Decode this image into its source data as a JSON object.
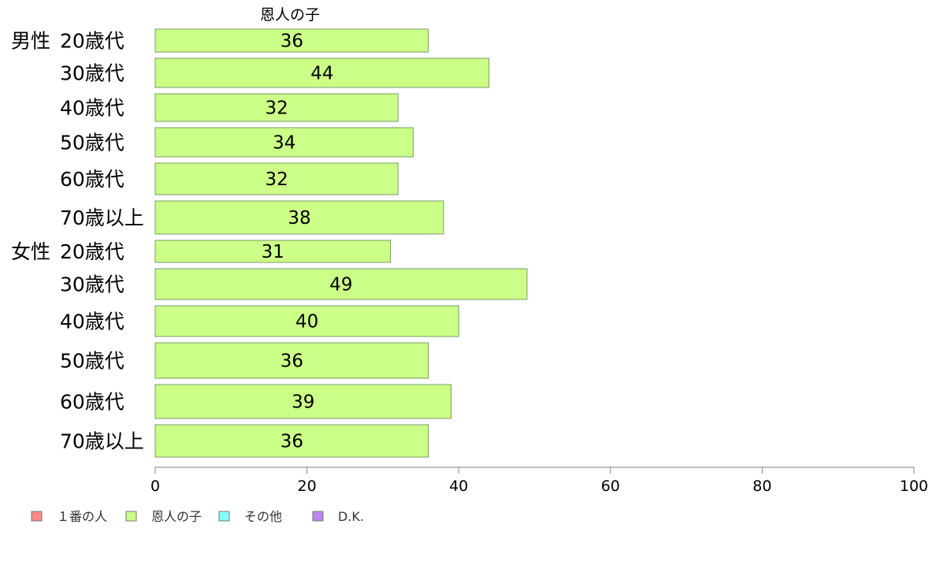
{
  "chart_data": {
    "type": "bar",
    "orientation": "horizontal",
    "series_title": "恩人の子",
    "groups": [
      {
        "label": "男性",
        "start_index": 0
      },
      {
        "label": "女性",
        "start_index": 6
      }
    ],
    "categories": [
      "20歳代",
      "30歳代",
      "40歳代",
      "50歳代",
      "60歳代",
      "70歳以上",
      "20歳代",
      "30歳代",
      "40歳代",
      "50歳代",
      "60歳代",
      "70歳以上"
    ],
    "series": [
      {
        "name": "恩人の子",
        "color": "#ccff88",
        "values": [
          36,
          44,
          32,
          34,
          32,
          38,
          31,
          49,
          40,
          36,
          39,
          36
        ]
      }
    ],
    "xlim": [
      0,
      100
    ],
    "xticks": [
      0,
      20,
      40,
      60,
      80,
      100
    ],
    "grid": false,
    "legend": {
      "position": "bottom-left",
      "items": [
        {
          "label": "１番の人",
          "color": "#ff8888"
        },
        {
          "label": "恩人の子",
          "color": "#ccff88"
        },
        {
          "label": "その他",
          "color": "#88ffff"
        },
        {
          "label": "D.K.",
          "color": "#bb88ee"
        }
      ]
    }
  }
}
